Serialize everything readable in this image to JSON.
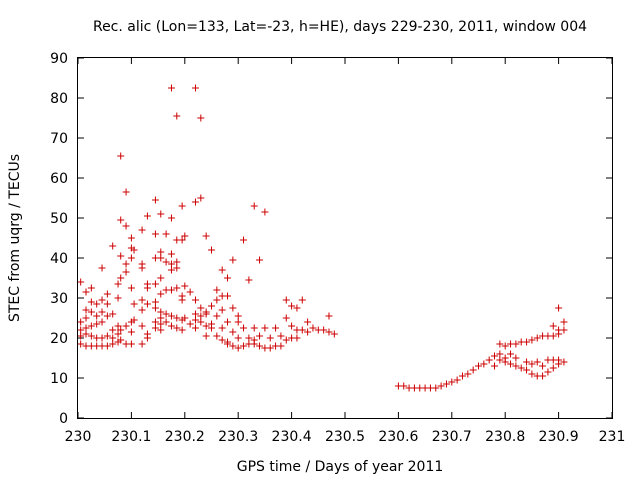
{
  "chart_data": {
    "type": "scatter",
    "title": "Rec. alic (Lon=133, Lat=-23, h=HE), days 229-230, 2011, window 004",
    "xlabel": "GPS time / Days of year 2011",
    "ylabel": "STEC from uqrg / TECUs",
    "xlim": [
      230,
      231
    ],
    "ylim": [
      0,
      90
    ],
    "x_ticks": [
      "230",
      "230.1",
      "230.2",
      "230.3",
      "230.4",
      "230.5",
      "230.6",
      "230.7",
      "230.8",
      "230.9",
      "231"
    ],
    "y_ticks": [
      "0",
      "10",
      "20",
      "30",
      "40",
      "50",
      "60",
      "70",
      "80",
      "90"
    ],
    "grid": false,
    "marker": "+",
    "color": "#cc0000",
    "series": [
      {
        "points": [
          [
            230.005,
            34.0
          ],
          [
            230.005,
            24.0
          ],
          [
            230.005,
            22.0
          ],
          [
            230.005,
            20.5
          ],
          [
            230.005,
            18.5
          ],
          [
            230.015,
            31.5
          ],
          [
            230.015,
            27.0
          ],
          [
            230.015,
            25.0
          ],
          [
            230.015,
            22.5
          ],
          [
            230.015,
            21.0
          ],
          [
            230.015,
            18.0
          ],
          [
            230.025,
            32.5
          ],
          [
            230.025,
            29.0
          ],
          [
            230.025,
            26.5
          ],
          [
            230.025,
            23.0
          ],
          [
            230.025,
            20.5
          ],
          [
            230.025,
            18.0
          ],
          [
            230.035,
            28.5
          ],
          [
            230.035,
            25.5
          ],
          [
            230.035,
            23.5
          ],
          [
            230.035,
            20.0
          ],
          [
            230.035,
            18.0
          ],
          [
            230.045,
            37.5
          ],
          [
            230.045,
            29.5
          ],
          [
            230.045,
            26.5
          ],
          [
            230.045,
            24.0
          ],
          [
            230.045,
            20.0
          ],
          [
            230.045,
            18.0
          ],
          [
            230.055,
            31.0
          ],
          [
            230.055,
            28.5
          ],
          [
            230.055,
            25.5
          ],
          [
            230.055,
            20.5
          ],
          [
            230.055,
            18.0
          ],
          [
            230.065,
            43.0
          ],
          [
            230.065,
            26.0
          ],
          [
            230.065,
            22.0
          ],
          [
            230.065,
            20.0
          ],
          [
            230.065,
            18.5
          ],
          [
            230.075,
            33.5
          ],
          [
            230.075,
            30.0
          ],
          [
            230.075,
            23.0
          ],
          [
            230.075,
            21.0
          ],
          [
            230.075,
            19.0
          ],
          [
            230.08,
            65.5
          ],
          [
            230.08,
            49.5
          ],
          [
            230.08,
            40.5
          ],
          [
            230.08,
            35.0
          ],
          [
            230.08,
            22.0
          ],
          [
            230.08,
            19.5
          ],
          [
            230.09,
            56.5
          ],
          [
            230.09,
            48.0
          ],
          [
            230.09,
            38.5
          ],
          [
            230.09,
            36.5
          ],
          [
            230.09,
            23.0
          ],
          [
            230.09,
            18.5
          ],
          [
            230.1,
            45.0
          ],
          [
            230.1,
            42.5
          ],
          [
            230.1,
            40.0
          ],
          [
            230.1,
            32.5
          ],
          [
            230.1,
            24.0
          ],
          [
            230.1,
            21.5
          ],
          [
            230.1,
            18.5
          ],
          [
            230.105,
            42.0
          ],
          [
            230.105,
            28.5
          ],
          [
            230.105,
            24.5
          ],
          [
            230.12,
            47.0
          ],
          [
            230.12,
            38.5
          ],
          [
            230.12,
            37.5
          ],
          [
            230.12,
            29.5
          ],
          [
            230.12,
            27.0
          ],
          [
            230.12,
            23.0
          ],
          [
            230.12,
            18.5
          ],
          [
            230.13,
            50.5
          ],
          [
            230.13,
            33.5
          ],
          [
            230.13,
            32.5
          ],
          [
            230.13,
            28.5
          ],
          [
            230.13,
            21.0
          ],
          [
            230.13,
            20.0
          ],
          [
            230.145,
            54.5
          ],
          [
            230.145,
            46.0
          ],
          [
            230.145,
            40.0
          ],
          [
            230.145,
            33.5
          ],
          [
            230.145,
            29.0
          ],
          [
            230.145,
            27.5
          ],
          [
            230.145,
            24.0
          ],
          [
            230.145,
            22.5
          ],
          [
            230.155,
            51.0
          ],
          [
            230.155,
            41.5
          ],
          [
            230.155,
            40.0
          ],
          [
            230.155,
            35.0
          ],
          [
            230.155,
            31.0
          ],
          [
            230.155,
            26.5
          ],
          [
            230.155,
            25.0
          ],
          [
            230.155,
            23.5
          ],
          [
            230.155,
            22.0
          ],
          [
            230.165,
            46.0
          ],
          [
            230.165,
            39.0
          ],
          [
            230.165,
            32.0
          ],
          [
            230.165,
            26.0
          ],
          [
            230.165,
            24.0
          ],
          [
            230.175,
            82.5
          ],
          [
            230.175,
            50.0
          ],
          [
            230.175,
            41.0
          ],
          [
            230.175,
            38.5
          ],
          [
            230.175,
            37.0
          ],
          [
            230.175,
            32.0
          ],
          [
            230.175,
            25.5
          ],
          [
            230.175,
            23.0
          ],
          [
            230.185,
            75.5
          ],
          [
            230.185,
            44.5
          ],
          [
            230.185,
            39.0
          ],
          [
            230.185,
            37.5
          ],
          [
            230.185,
            32.5
          ],
          [
            230.185,
            25.0
          ],
          [
            230.185,
            22.5
          ],
          [
            230.195,
            53.0
          ],
          [
            230.195,
            44.5
          ],
          [
            230.195,
            30.5
          ],
          [
            230.195,
            29.5
          ],
          [
            230.195,
            24.5
          ],
          [
            230.195,
            22.0
          ],
          [
            230.2,
            45.5
          ],
          [
            230.2,
            33.0
          ],
          [
            230.2,
            25.0
          ],
          [
            230.21,
            31.5
          ],
          [
            230.21,
            23.5
          ],
          [
            230.22,
            82.5
          ],
          [
            230.22,
            54.0
          ],
          [
            230.22,
            29.5
          ],
          [
            230.22,
            26.0
          ],
          [
            230.22,
            24.5
          ],
          [
            230.22,
            22.5
          ],
          [
            230.23,
            75.0
          ],
          [
            230.23,
            55.0
          ],
          [
            230.23,
            27.5
          ],
          [
            230.23,
            25.5
          ],
          [
            230.23,
            24.0
          ],
          [
            230.24,
            45.5
          ],
          [
            230.24,
            26.5
          ],
          [
            230.24,
            26.0
          ],
          [
            230.24,
            23.0
          ],
          [
            230.24,
            20.5
          ],
          [
            230.25,
            42.0
          ],
          [
            230.25,
            28.0
          ],
          [
            230.25,
            23.5
          ],
          [
            230.25,
            22.5
          ],
          [
            230.26,
            32.0
          ],
          [
            230.26,
            29.5
          ],
          [
            230.26,
            25.5
          ],
          [
            230.26,
            20.5
          ],
          [
            230.27,
            37.0
          ],
          [
            230.27,
            30.5
          ],
          [
            230.27,
            27.0
          ],
          [
            230.27,
            22.5
          ],
          [
            230.27,
            19.5
          ],
          [
            230.28,
            35.0
          ],
          [
            230.28,
            30.5
          ],
          [
            230.28,
            24.0
          ],
          [
            230.28,
            19.0
          ],
          [
            230.28,
            18.5
          ],
          [
            230.29,
            39.5
          ],
          [
            230.29,
            27.5
          ],
          [
            230.29,
            21.5
          ],
          [
            230.29,
            18.0
          ],
          [
            230.3,
            25.5
          ],
          [
            230.3,
            24.0
          ],
          [
            230.3,
            20.0
          ],
          [
            230.3,
            17.5
          ],
          [
            230.31,
            44.5
          ],
          [
            230.31,
            22.5
          ],
          [
            230.31,
            18.0
          ],
          [
            230.32,
            34.5
          ],
          [
            230.32,
            20.0
          ],
          [
            230.32,
            18.5
          ],
          [
            230.33,
            53.0
          ],
          [
            230.33,
            22.5
          ],
          [
            230.33,
            19.5
          ],
          [
            230.33,
            18.5
          ],
          [
            230.34,
            39.5
          ],
          [
            230.34,
            20.5
          ],
          [
            230.34,
            18.0
          ],
          [
            230.35,
            51.5
          ],
          [
            230.35,
            22.5
          ],
          [
            230.35,
            17.5
          ],
          [
            230.36,
            20.0
          ],
          [
            230.36,
            17.5
          ],
          [
            230.37,
            22.5
          ],
          [
            230.37,
            18.0
          ],
          [
            230.38,
            20.5
          ],
          [
            230.38,
            18.0
          ],
          [
            230.39,
            29.5
          ],
          [
            230.39,
            25.0
          ],
          [
            230.39,
            19.5
          ],
          [
            230.4,
            28.0
          ],
          [
            230.4,
            23.0
          ],
          [
            230.4,
            20.0
          ],
          [
            230.41,
            27.5
          ],
          [
            230.41,
            22.0
          ],
          [
            230.41,
            20.0
          ],
          [
            230.42,
            29.5
          ],
          [
            230.42,
            22.0
          ],
          [
            230.43,
            24.0
          ],
          [
            230.43,
            21.5
          ],
          [
            230.44,
            22.5
          ],
          [
            230.45,
            22.0
          ],
          [
            230.46,
            22.0
          ],
          [
            230.47,
            25.5
          ],
          [
            230.47,
            21.5
          ],
          [
            230.48,
            21.0
          ],
          [
            230.6,
            8.0
          ],
          [
            230.61,
            8.0
          ],
          [
            230.62,
            7.5
          ],
          [
            230.63,
            7.5
          ],
          [
            230.64,
            7.5
          ],
          [
            230.65,
            7.5
          ],
          [
            230.66,
            7.5
          ],
          [
            230.67,
            7.5
          ],
          [
            230.68,
            8.0
          ],
          [
            230.69,
            8.5
          ],
          [
            230.7,
            9.0
          ],
          [
            230.71,
            9.5
          ],
          [
            230.72,
            10.5
          ],
          [
            230.73,
            11.0
          ],
          [
            230.74,
            12.0
          ],
          [
            230.75,
            13.0
          ],
          [
            230.76,
            13.5
          ],
          [
            230.77,
            14.5
          ],
          [
            230.78,
            15.5
          ],
          [
            230.78,
            13.0
          ],
          [
            230.79,
            18.5
          ],
          [
            230.79,
            16.0
          ],
          [
            230.79,
            14.5
          ],
          [
            230.8,
            18.0
          ],
          [
            230.8,
            15.0
          ],
          [
            230.8,
            14.0
          ],
          [
            230.81,
            18.5
          ],
          [
            230.81,
            16.0
          ],
          [
            230.81,
            13.5
          ],
          [
            230.82,
            18.5
          ],
          [
            230.82,
            15.0
          ],
          [
            230.82,
            13.0
          ],
          [
            230.83,
            19.0
          ],
          [
            230.83,
            12.5
          ],
          [
            230.84,
            19.0
          ],
          [
            230.84,
            14.0
          ],
          [
            230.84,
            12.0
          ],
          [
            230.85,
            19.5
          ],
          [
            230.85,
            13.5
          ],
          [
            230.85,
            11.0
          ],
          [
            230.86,
            20.0
          ],
          [
            230.86,
            14.0
          ],
          [
            230.86,
            10.5
          ],
          [
            230.87,
            20.5
          ],
          [
            230.87,
            13.0
          ],
          [
            230.87,
            10.5
          ],
          [
            230.88,
            20.5
          ],
          [
            230.88,
            14.5
          ],
          [
            230.88,
            11.5
          ],
          [
            230.89,
            23.0
          ],
          [
            230.89,
            20.5
          ],
          [
            230.89,
            14.5
          ],
          [
            230.89,
            12.5
          ],
          [
            230.9,
            27.5
          ],
          [
            230.9,
            22.0
          ],
          [
            230.9,
            21.0
          ],
          [
            230.9,
            14.5
          ],
          [
            230.9,
            13.5
          ],
          [
            230.91,
            24.0
          ],
          [
            230.91,
            22.0
          ],
          [
            230.91,
            14.0
          ]
        ]
      }
    ]
  }
}
